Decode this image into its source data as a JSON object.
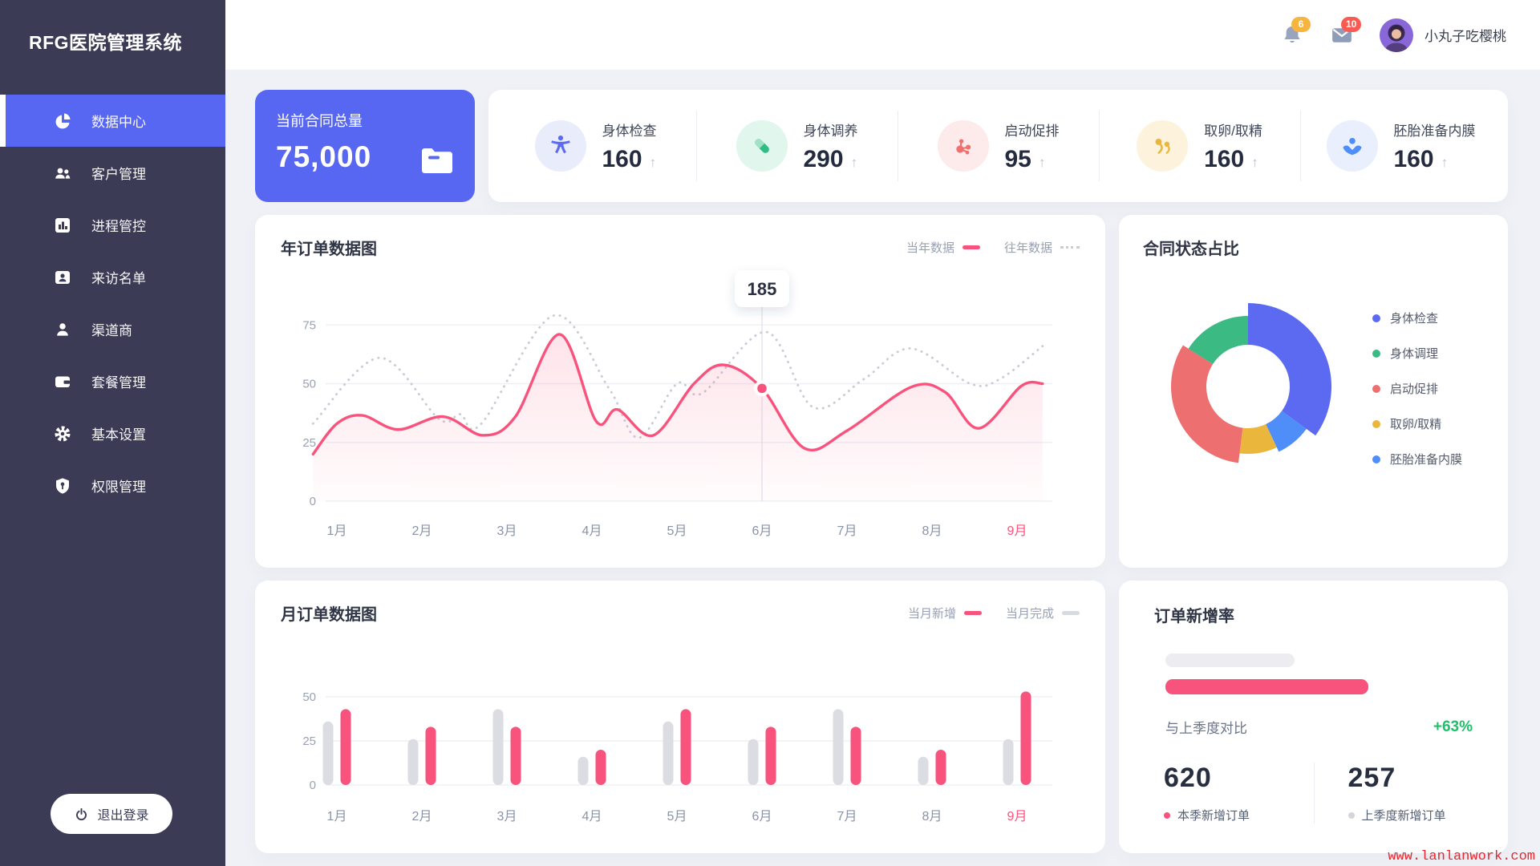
{
  "app_title": "RFG医院管理系统",
  "glyphs": {
    "arrow_up": "↑"
  },
  "colors": {
    "primary": "#5867f2",
    "accent_pink": "#f8537d",
    "sidebar": "#3b3b56"
  },
  "sidebar": {
    "items": [
      {
        "label": "数据中心",
        "icon": "pie-chart-icon",
        "active": true
      },
      {
        "label": "客户管理",
        "icon": "people-icon",
        "active": false
      },
      {
        "label": "进程管控",
        "icon": "bar-chart-icon",
        "active": false
      },
      {
        "label": "来访名单",
        "icon": "contact-card-icon",
        "active": false
      },
      {
        "label": "渠道商",
        "icon": "person-icon",
        "active": false
      },
      {
        "label": "套餐管理",
        "icon": "wallet-icon",
        "active": false
      },
      {
        "label": "基本设置",
        "icon": "gear-icon",
        "active": false
      },
      {
        "label": "权限管理",
        "icon": "shield-key-icon",
        "active": false
      }
    ],
    "logout_label": "退出登录"
  },
  "topbar": {
    "bell_badge": "6",
    "bell_badge_color": "#f7b43f",
    "mail_badge": "10",
    "mail_badge_color": "#fa5a52",
    "username": "小丸子吃樱桃"
  },
  "summary": {
    "contract_card": {
      "label": "当前合同总量",
      "value": "75,000",
      "bg": "#5867f2"
    },
    "stats": [
      {
        "label": "身体检查",
        "value": "160",
        "icon": "accessibility-icon",
        "bg": "#e9edfb"
      },
      {
        "label": "身体调养",
        "value": "290",
        "icon": "capsule-icon",
        "bg": "#e1f6ec"
      },
      {
        "label": "启动促排",
        "value": "95",
        "icon": "molecule-icon",
        "bg": "#fdeaea"
      },
      {
        "label": "取卵/取精",
        "value": "160",
        "icon": "sperm-icon",
        "bg": "#fdf3dc"
      },
      {
        "label": "胚胎准备内膜",
        "value": "160",
        "icon": "hands-care-icon",
        "bg": "#e9effd"
      }
    ]
  },
  "chart_data": [
    {
      "id": "yearly_orders",
      "type": "line",
      "title": "年订单数据图",
      "legend": [
        {
          "label": "当年数据",
          "color": "#f8537d",
          "style": "solid"
        },
        {
          "label": "往年数据",
          "color": "#c9ccd6",
          "style": "dotted"
        }
      ],
      "x_ticks": [
        "1月",
        "2月",
        "3月",
        "4月",
        "5月",
        "6月",
        "7月",
        "8月",
        "9月"
      ],
      "highlighted_tick": "9月",
      "highlight_color": "#f8537d",
      "y_ticks": [
        0,
        25,
        50,
        75
      ],
      "ylim": [
        0,
        80
      ],
      "grid": true,
      "series": [
        {
          "name": "当年数据",
          "points": [
            [
              0.72,
              20
            ],
            [
              1,
              33
            ],
            [
              1.3,
              36.5
            ],
            [
              1.72,
              30.5
            ],
            [
              2.25,
              36
            ],
            [
              2.72,
              28
            ],
            [
              3.1,
              36
            ],
            [
              3.62,
              71
            ],
            [
              4.05,
              34
            ],
            [
              4.3,
              39
            ],
            [
              4.72,
              28
            ],
            [
              5.2,
              50
            ],
            [
              5.55,
              58
            ],
            [
              6,
              48
            ],
            [
              6.5,
              22.5
            ],
            [
              7,
              30
            ],
            [
              7.75,
              48.5
            ],
            [
              8.15,
              46.5
            ],
            [
              8.55,
              31
            ],
            [
              9.05,
              49
            ],
            [
              9.3,
              50
            ]
          ]
        },
        {
          "name": "往年数据",
          "points": [
            [
              0.72,
              33
            ],
            [
              1.5,
              61
            ],
            [
              2.2,
              35
            ],
            [
              2.45,
              37
            ],
            [
              2.7,
              33
            ],
            [
              3.55,
              79
            ],
            [
              4.2,
              48
            ],
            [
              4.55,
              27
            ],
            [
              5.0,
              50
            ],
            [
              5.3,
              46
            ],
            [
              6.05,
              72
            ],
            [
              6.6,
              40
            ],
            [
              7.2,
              52
            ],
            [
              7.75,
              65
            ],
            [
              8.45,
              50
            ],
            [
              8.8,
              52
            ],
            [
              9.3,
              66
            ]
          ]
        }
      ],
      "tooltip": {
        "month": "6月",
        "month_index": 6,
        "value_at_point": 48,
        "label": "185"
      }
    },
    {
      "id": "contract_status",
      "type": "donut",
      "title": "合同状态占比",
      "inner_radius": 52,
      "slices": [
        {
          "label": "身体检查",
          "pct": 35,
          "color": "#5b6af0",
          "outer_r": 104
        },
        {
          "label": "胚胎准备内膜",
          "pct": 8,
          "color": "#4f8ef8",
          "outer_r": 90
        },
        {
          "label": "取卵/取精",
          "pct": 9,
          "color": "#eab73c",
          "outer_r": 84
        },
        {
          "label": "启动促排",
          "pct": 32,
          "color": "#ed6f6f",
          "outer_r": 96
        },
        {
          "label": "身体调理",
          "pct": 16,
          "color": "#3bba83",
          "outer_r": 88
        }
      ],
      "legend_position": "right"
    },
    {
      "id": "monthly_orders",
      "type": "bar",
      "title": "月订单数据图",
      "legend": [
        {
          "label": "当月新增",
          "color": "#f8537d"
        },
        {
          "label": "当月完成",
          "color": "#d9dae0"
        }
      ],
      "categories": [
        "1月",
        "2月",
        "3月",
        "4月",
        "5月",
        "6月",
        "7月",
        "8月",
        "9月"
      ],
      "highlighted_tick": "9月",
      "highlight_color": "#f8537d",
      "y_ticks": [
        0,
        25,
        50
      ],
      "ylim": [
        0,
        55
      ],
      "series": [
        {
          "name": "当月完成",
          "color": "#dcdde3",
          "values": [
            36,
            26,
            43,
            16,
            36,
            26,
            43,
            16,
            26
          ]
        },
        {
          "name": "当月新增",
          "color": "#f8537d",
          "values": [
            43,
            33,
            33,
            20,
            43,
            33,
            33,
            20,
            53
          ]
        }
      ]
    },
    {
      "id": "order_growth",
      "type": "kpi",
      "title": "订单新增率",
      "compare_label": "与上季度对比",
      "growth_pct": "+63%",
      "growth_color": "#1fc06a",
      "bars": [
        {
          "name": "上季度",
          "width_pct": 42,
          "color": "#ededf1"
        },
        {
          "name": "本季",
          "width_pct": 66,
          "color": "#f8537d"
        }
      ],
      "stats": [
        {
          "value": "620",
          "label": "本季新增订单",
          "dot_color": "#f8537d"
        },
        {
          "value": "257",
          "label": "上季度新增订单",
          "dot_color": "#d4d5db"
        }
      ]
    }
  ],
  "watermark": "www.lanlanwork.com"
}
